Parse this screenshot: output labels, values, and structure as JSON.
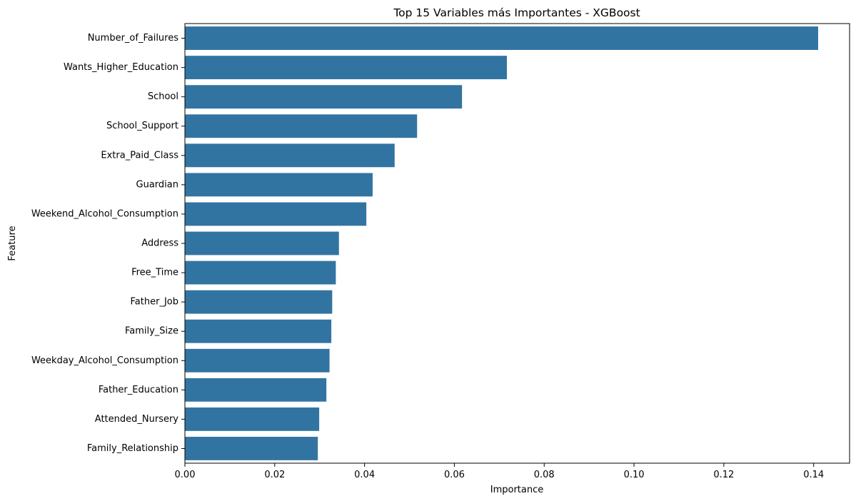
{
  "chart_data": {
    "type": "bar",
    "orientation": "horizontal",
    "title": "Top 15 Variables más Importantes - XGBoost",
    "xlabel": "Importance",
    "ylabel": "Feature",
    "categories": [
      "Number_of_Failures",
      "Wants_Higher_Education",
      "School",
      "School_Support",
      "Extra_Paid_Class",
      "Guardian",
      "Weekend_Alcohol_Consumption",
      "Address",
      "Free_Time",
      "Father_Job",
      "Family_Size",
      "Weekday_Alcohol_Consumption",
      "Father_Education",
      "Attended_Nursery",
      "Family_Relationship"
    ],
    "values": [
      0.141,
      0.0717,
      0.0617,
      0.0517,
      0.0467,
      0.0418,
      0.0404,
      0.0343,
      0.0336,
      0.0328,
      0.0326,
      0.0322,
      0.0315,
      0.0299,
      0.0296
    ],
    "xlim": [
      0,
      0.148
    ],
    "xticks": [
      0.0,
      0.02,
      0.04,
      0.06,
      0.08,
      0.1,
      0.12,
      0.14
    ],
    "xtick_labels": [
      "0.00",
      "0.02",
      "0.04",
      "0.06",
      "0.08",
      "0.10",
      "0.12",
      "0.14"
    ],
    "bar_color": "#3274a1",
    "grid": false,
    "legend": "none"
  }
}
